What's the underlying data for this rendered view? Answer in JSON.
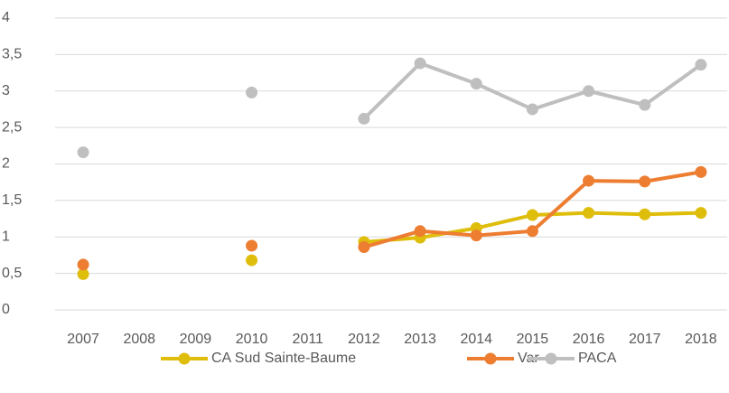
{
  "chart_data": {
    "type": "line",
    "categories": [
      "2007",
      "2008",
      "2009",
      "2010",
      "2011",
      "2012",
      "2013",
      "2014",
      "2015",
      "2016",
      "2017",
      "2018"
    ],
    "series": [
      {
        "name": "CA Sud Sainte-Baume",
        "color": "#dfbd0b",
        "values": [
          0.49,
          null,
          null,
          0.68,
          null,
          0.93,
          0.99,
          1.12,
          1.3,
          1.33,
          1.31,
          1.33
        ]
      },
      {
        "name": "Var",
        "color": "#ed7d31",
        "values": [
          0.62,
          null,
          null,
          0.88,
          null,
          0.86,
          1.08,
          1.02,
          1.08,
          1.77,
          1.76,
          1.89
        ]
      },
      {
        "name": "PACA",
        "color": "#bfbfbf",
        "values": [
          2.16,
          null,
          null,
          2.98,
          null,
          2.62,
          3.38,
          3.1,
          2.75,
          3.0,
          2.81,
          3.36
        ]
      }
    ],
    "ylim": [
      0,
      4
    ],
    "yticks": [
      0,
      {
        "value": 0.5,
        "label": "0,5"
      },
      1,
      {
        "value": 1.5,
        "label": "1,5"
      },
      2,
      {
        "value": 2.5,
        "label": "2,5"
      },
      3,
      {
        "value": 3.5,
        "label": "3,5"
      },
      4
    ],
    "grid": true,
    "legend": "bottom"
  }
}
